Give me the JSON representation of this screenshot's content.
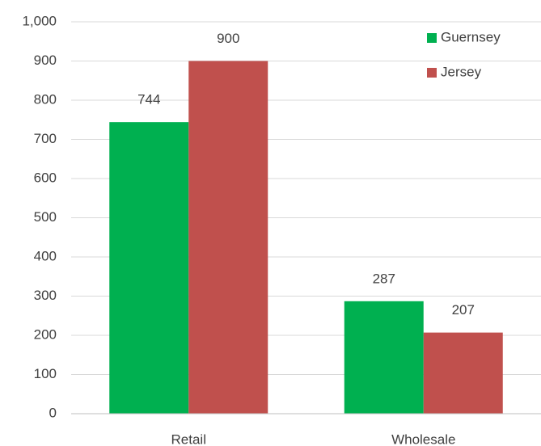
{
  "chart_data": {
    "type": "bar",
    "categories": [
      "Retail",
      "Wholesale"
    ],
    "series": [
      {
        "name": "Guernsey",
        "color": "#00b050",
        "values": [
          744,
          287
        ]
      },
      {
        "name": "Jersey",
        "color": "#c0504d",
        "values": [
          900,
          207
        ]
      }
    ],
    "ylim": [
      0,
      1000
    ],
    "yticks": [
      0,
      100,
      200,
      300,
      400,
      500,
      600,
      700,
      800,
      900,
      {
        "value": 1000,
        "label": "1,000"
      }
    ],
    "grid": true,
    "legend": "top-right",
    "data_labels": true
  }
}
